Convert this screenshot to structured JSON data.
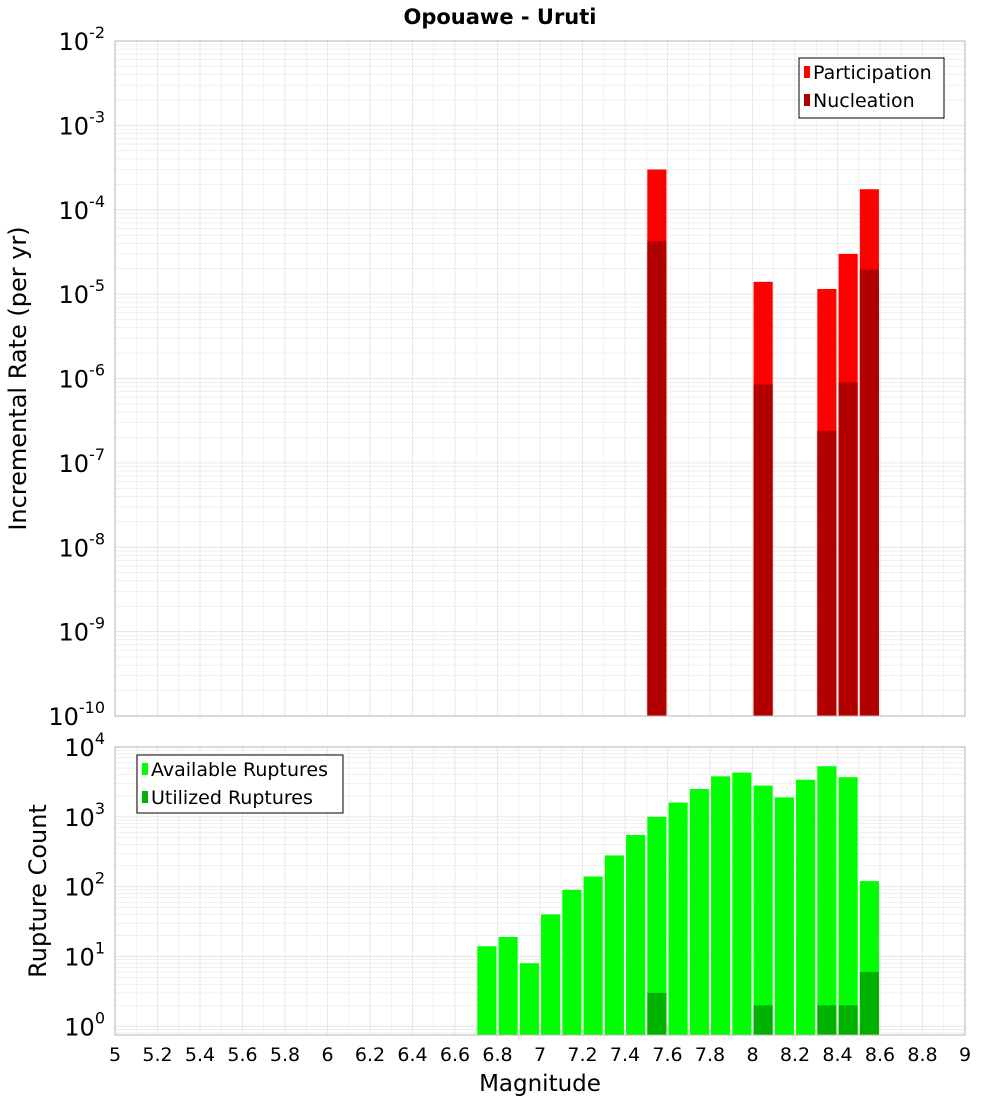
{
  "title": "Opouawe - Uruti",
  "x_tick_labels": [
    "5",
    "5.2",
    "5.4",
    "5.6",
    "5.8",
    "6",
    "6.2",
    "6.4",
    "6.6",
    "6.8",
    "7",
    "7.2",
    "7.4",
    "7.6",
    "7.8",
    "8",
    "8.2",
    "8.4",
    "8.6",
    "8.8",
    "9"
  ],
  "colors": {
    "participation": "#ff0000",
    "nucleation": "#b20000",
    "available": "#00ff00",
    "utilized": "#00b200",
    "grid": "#e6e6e6",
    "axis": "#b4b4b4"
  },
  "chart_data": [
    {
      "type": "bar",
      "title": "Opouawe - Uruti",
      "xlabel": "",
      "ylabel": "Incremental Rate (per yr)",
      "xlim": [
        5,
        9
      ],
      "ylim": [
        1e-10,
        0.01
      ],
      "y_scale": "log",
      "bar_width": 0.09,
      "grid": true,
      "legend_position": "top-right",
      "y_tick_labels": [
        {
          "base": "10",
          "exp": "-2",
          "value": 0.01
        },
        {
          "base": "10",
          "exp": "-3",
          "value": 0.001
        },
        {
          "base": "10",
          "exp": "-4",
          "value": 0.0001
        },
        {
          "base": "10",
          "exp": "-5",
          "value": 1e-05
        },
        {
          "base": "10",
          "exp": "-6",
          "value": 1e-06
        },
        {
          "base": "10",
          "exp": "-7",
          "value": 1e-07
        },
        {
          "base": "10",
          "exp": "-8",
          "value": 1e-08
        },
        {
          "base": "10",
          "exp": "-9",
          "value": 1e-09
        },
        {
          "base": "10",
          "exp": "-10",
          "value": 1e-10
        }
      ],
      "series": [
        {
          "name": "Participation",
          "x": [
            7.55,
            8.05,
            8.35,
            8.45,
            8.55
          ],
          "values": [
            0.0003,
            1.4e-05,
            1.15e-05,
            3e-05,
            0.000175
          ]
        },
        {
          "name": "Nucleation",
          "x": [
            7.55,
            8.05,
            8.35,
            8.45,
            8.55
          ],
          "values": [
            4.2e-05,
            8.5e-07,
            2.4e-07,
            9e-07,
            1.95e-05
          ]
        }
      ]
    },
    {
      "type": "bar",
      "xlabel": "Magnitude",
      "ylabel": "Rupture Count",
      "xlim": [
        5,
        9
      ],
      "ylim": [
        0.75,
        10000
      ],
      "y_scale": "log",
      "bar_width": 0.09,
      "grid": true,
      "legend_position": "top-left",
      "y_tick_labels": [
        {
          "base": "10",
          "exp": "4",
          "value": 10000
        },
        {
          "base": "10",
          "exp": "3",
          "value": 1000
        },
        {
          "base": "10",
          "exp": "2",
          "value": 100
        },
        {
          "base": "10",
          "exp": "1",
          "value": 10
        },
        {
          "base": "10",
          "exp": "0",
          "value": 1
        }
      ],
      "series": [
        {
          "name": "Available Ruptures",
          "x": [
            6.75,
            6.85,
            6.95,
            7.05,
            7.15,
            7.25,
            7.35,
            7.45,
            7.55,
            7.65,
            7.75,
            7.85,
            7.95,
            8.05,
            8.15,
            8.25,
            8.35,
            8.45,
            8.55
          ],
          "values": [
            14,
            19,
            8,
            40,
            90,
            140,
            280,
            550,
            1000,
            1600,
            2500,
            3800,
            4300,
            2800,
            1900,
            3400,
            5300,
            3700,
            120
          ]
        },
        {
          "name": "Utilized Ruptures",
          "x": [
            7.55,
            8.05,
            8.35,
            8.45,
            8.55
          ],
          "values": [
            3,
            2,
            2,
            2,
            6
          ]
        }
      ]
    }
  ]
}
